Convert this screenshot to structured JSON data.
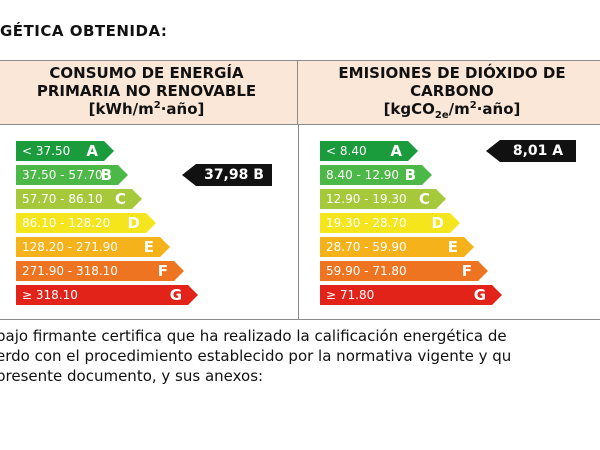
{
  "heading": "GÉTICA OBTENIDA:",
  "left_panel": {
    "title_line1": "CONSUMO DE ENERGÍA",
    "title_line2": "PRIMARIA NO RENOVABLE",
    "unit_pre": "[kWh/m",
    "unit_sup": "2",
    "unit_post": "·año]",
    "bars": [
      {
        "range": "< 37.50",
        "letter": "A",
        "color": "#1a9b3c"
      },
      {
        "range": "37.50 - 57.70",
        "letter": "B",
        "color": "#4cb847"
      },
      {
        "range": "57.70 - 86.10",
        "letter": "C",
        "color": "#a6c93c"
      },
      {
        "range": "86.10 - 128.20",
        "letter": "D",
        "color": "#f4e51c"
      },
      {
        "range": "128.20 - 271.90",
        "letter": "E",
        "color": "#f5b21b"
      },
      {
        "range": "271.90 - 318.10",
        "letter": "F",
        "color": "#ee7421"
      },
      {
        "range": "≥ 318.10",
        "letter": "G",
        "color": "#e2231a"
      }
    ],
    "rating_value": "37,98 B",
    "rating_index": 1
  },
  "right_panel": {
    "title_line1": "EMISIONES DE DIÓXIDO DE",
    "title_line2": "CARBONO",
    "unit_pre": "[kgCO",
    "unit_sub": "2e",
    "unit_mid": "/m",
    "unit_sup": "2",
    "unit_post": "·año]",
    "bars": [
      {
        "range": "< 8.40",
        "letter": "A",
        "color": "#1a9b3c"
      },
      {
        "range": "8.40 - 12.90",
        "letter": "B",
        "color": "#4cb847"
      },
      {
        "range": "12.90 - 19.30",
        "letter": "C",
        "color": "#a6c93c"
      },
      {
        "range": "19.30 - 28.70",
        "letter": "D",
        "color": "#f4e51c"
      },
      {
        "range": "28.70 - 59.90",
        "letter": "E",
        "color": "#f5b21b"
      },
      {
        "range": "59.90 - 71.80",
        "letter": "F",
        "color": "#ee7421"
      },
      {
        "range": "≥ 71.80",
        "letter": "G",
        "color": "#e2231a"
      }
    ],
    "rating_value": "8,01 A",
    "rating_index": 0
  },
  "paragraph": {
    "line1": "bajo firmante certifica que ha realizado la calificación energética de",
    "line2": "erdo con el procedimiento establecido por la normativa vigente y qu",
    "line3": " presente documento, y sus anexos:"
  }
}
